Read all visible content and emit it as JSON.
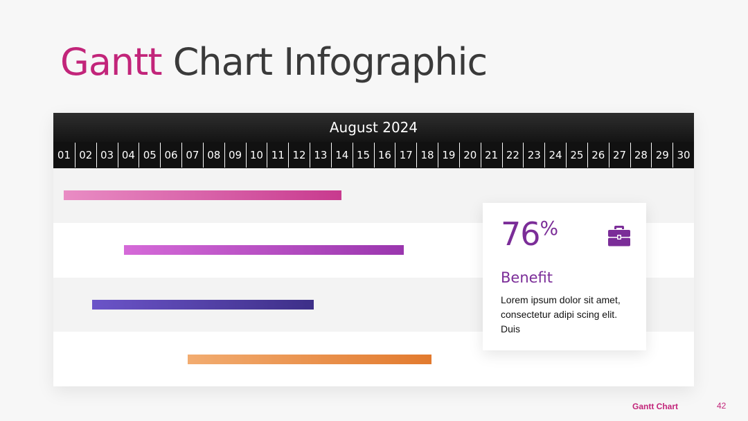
{
  "title": {
    "highlight": "Gantt",
    "rest": "Chart Infographic"
  },
  "chart_data": {
    "type": "bar",
    "subtype": "gantt",
    "header": "August 2024",
    "days": [
      "01",
      "02",
      "03",
      "04",
      "05",
      "06",
      "07",
      "08",
      "09",
      "10",
      "11",
      "12",
      "13",
      "14",
      "15",
      "16",
      "17",
      "18",
      "19",
      "20",
      "21",
      "22",
      "23",
      "24",
      "25",
      "26",
      "27",
      "28",
      "29",
      "30"
    ],
    "tasks": [
      {
        "start": 1.5,
        "end": 14.5,
        "color_start": "#e98cc4",
        "color_end": "#c83a8e"
      },
      {
        "start": 4.3,
        "end": 17.4,
        "color_start": "#d56ad8",
        "color_end": "#9a36ae"
      },
      {
        "start": 2.8,
        "end": 13.2,
        "color_start": "#6b54c8",
        "color_end": "#3d2f88"
      },
      {
        "start": 7.3,
        "end": 18.7,
        "color_start": "#f2ac70",
        "color_end": "#e27a2e"
      }
    ],
    "row_colors": [
      "#f3f3f3",
      "#ffffff",
      "#f3f3f3",
      "#ffffff"
    ]
  },
  "card": {
    "value": "76",
    "unit": "%",
    "label": "Benefit",
    "description": "Lorem ipsum dolor sit amet, consectetur adipi scing elit. Duis",
    "icon": "briefcase-icon",
    "accent": "#7b2d98"
  },
  "footer": {
    "label": "Gantt Chart",
    "page": "42"
  }
}
